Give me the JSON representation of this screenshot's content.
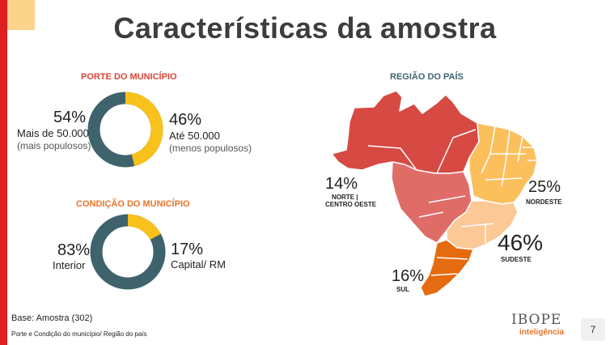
{
  "title": "Características da amostra",
  "porte": {
    "title": "PORTE DO MUNICÍPIO",
    "left": {
      "pct": "54%",
      "label": "Mais de 50.000",
      "sub": "(mais populosos)",
      "value": 54
    },
    "right": {
      "pct": "46%",
      "label": "Até 50.000",
      "sub": "(menos populosos)",
      "value": 46
    }
  },
  "condicao": {
    "title": "CONDIÇÃO DO MUNICÍPIO",
    "left": {
      "pct": "83%",
      "label": "Interior",
      "value": 83
    },
    "right": {
      "pct": "17%",
      "label": "Capital/ RM",
      "value": 17
    }
  },
  "regiao": {
    "title": "REGIÃO DO PAÍS",
    "norte": {
      "pct": "14%",
      "name1": "NORTE |",
      "name2": "CENTRO OESTE"
    },
    "nordeste": {
      "pct": "25%",
      "name": "NORDESTE"
    },
    "sudeste": {
      "pct": "46%",
      "name": "SUDESTE"
    },
    "sul": {
      "pct": "16%",
      "name": "SUL"
    }
  },
  "footer": {
    "base": "Base: Amostra (302)",
    "note": "Porte e Condição do município/ Região do país",
    "brand": "IBOPE",
    "brand_sub": "inteligência",
    "page": "7"
  },
  "colors": {
    "teal": "#3e636d",
    "yellow": "#f9c11b",
    "norte": "#d64a43",
    "co": "#e06c68",
    "nordeste": "#fbbf5c",
    "sudeste": "#fbc896",
    "sul": "#e56b10"
  }
}
